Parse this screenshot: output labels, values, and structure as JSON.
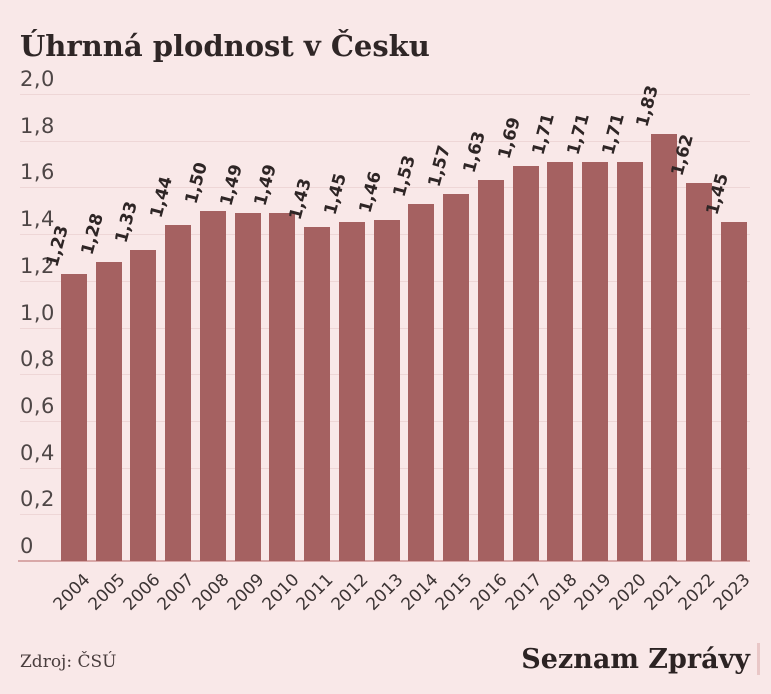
{
  "title": "Úhrnná plodnost v Česku",
  "footer": {
    "source": "Zdroj: ČSÚ",
    "brand": "Seznam Zprávy"
  },
  "colors": {
    "background": "#f9e8e8",
    "bar": "#a56161",
    "gridline": "#eed6d6",
    "axis_line": "#d9a8a8",
    "title_text": "#2f2626",
    "tick_text": "#4e4646",
    "value_text": "#2e2525",
    "brand_accent": "#e9c7c7"
  },
  "chart_data": {
    "type": "bar",
    "title": "Úhrnná plodnost v Česku",
    "categories": [
      "2004",
      "2005",
      "2006",
      "2007",
      "2008",
      "2009",
      "2010",
      "2011",
      "2012",
      "2013",
      "2014",
      "2015",
      "2016",
      "2017",
      "2018",
      "2019",
      "2020",
      "2021",
      "2022",
      "2023"
    ],
    "values": [
      1.23,
      1.28,
      1.33,
      1.44,
      1.5,
      1.49,
      1.49,
      1.43,
      1.45,
      1.46,
      1.53,
      1.57,
      1.63,
      1.69,
      1.71,
      1.71,
      1.71,
      1.83,
      1.62,
      1.45
    ],
    "value_labels": [
      "1,23",
      "1,28",
      "1,33",
      "1,44",
      "1,50",
      "1,49",
      "1,49",
      "1,43",
      "1,45",
      "1,46",
      "1,53",
      "1,57",
      "1,63",
      "1,69",
      "1,71",
      "1,71",
      "1,71",
      "1,83",
      "1,62",
      "1,45"
    ],
    "xlabel": "",
    "ylabel": "",
    "ylim": [
      0,
      2.0
    ],
    "grid": true,
    "decimal_separator": ",",
    "y_ticks": [
      {
        "value": 2.0,
        "label": "2,0"
      },
      {
        "value": 1.8,
        "label": "1,8"
      },
      {
        "value": 1.6,
        "label": "1,6"
      },
      {
        "value": 1.4,
        "label": "1,4"
      },
      {
        "value": 1.2,
        "label": "1,2"
      },
      {
        "value": 1.0,
        "label": "1,0"
      },
      {
        "value": 0.8,
        "label": "0,8"
      },
      {
        "value": 0.6,
        "label": "0,6"
      },
      {
        "value": 0.4,
        "label": "0,4"
      },
      {
        "value": 0.2,
        "label": "0,2"
      },
      {
        "value": 0,
        "label": "0"
      }
    ],
    "source": "Zdroj: ČSÚ"
  }
}
